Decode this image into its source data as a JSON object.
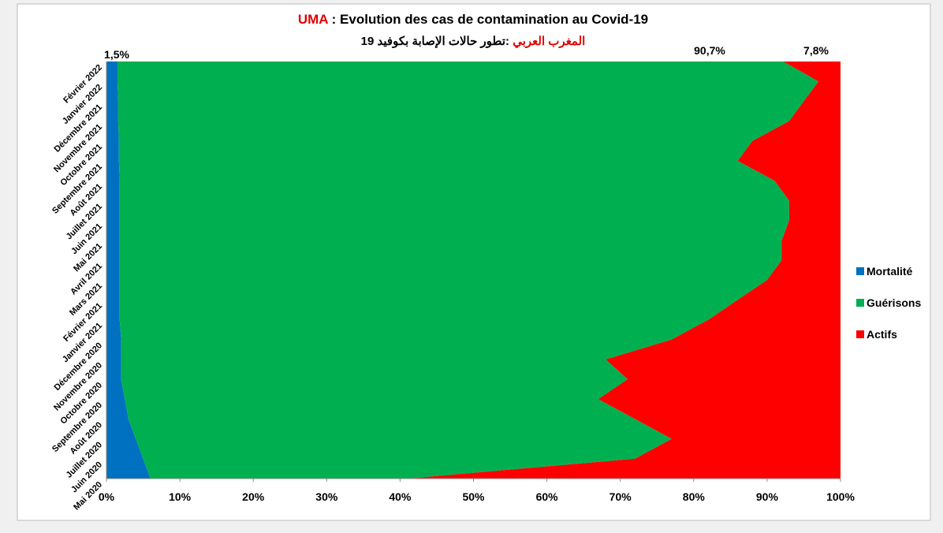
{
  "chart_data": {
    "type": "area",
    "orientation": "horizontal",
    "stacked": "percent",
    "title_prefix": "UMA",
    "title": " : Evolution des cas de contamination  au Covid-19",
    "subtitle_prefix": "المغرب العربي",
    "subtitle": " :تطور حالات الإصابة بكوفيد 19",
    "annotations": [
      "1,5%",
      "90,7%",
      "7,8%"
    ],
    "categories": [
      "Mai 2020",
      "Juin 2020",
      "Juillet 2020",
      "Août 2020",
      "Septembre 2020",
      "Octobre 2020",
      "Novembre 2020",
      "Décembre 2020",
      "Janvier 2021",
      "Février 2021",
      "Mars 2021",
      "Avril 2021",
      "Mai 2021",
      "Juin 2021",
      "Juillet 2021",
      "Août 2021",
      "Septembre 2021",
      "Octobre 2021",
      "Novembre 2021",
      "Décembre 2021",
      "Janvier 2022",
      "Février 2022"
    ],
    "series": [
      {
        "name": "Mortalité",
        "color": "#0070c0",
        "values": [
          6,
          5,
          4,
          3,
          2.5,
          2,
          2,
          2,
          1.8,
          1.8,
          1.8,
          1.8,
          1.8,
          1.8,
          1.8,
          1.8,
          1.7,
          1.7,
          1.6,
          1.6,
          1.5,
          1.5
        ]
      },
      {
        "name": "Guérisons",
        "color": "#00b050",
        "values": [
          35,
          67,
          73,
          69,
          64.5,
          69,
          66,
          75,
          80.2,
          84.2,
          88.2,
          90.2,
          90.2,
          91.2,
          91.2,
          89.2,
          84.3,
          86.3,
          91.4,
          93.4,
          95.5,
          90.7
        ]
      },
      {
        "name": "Actifs",
        "color": "#ff0000",
        "values": [
          59,
          28,
          23,
          28,
          33,
          29,
          32,
          23,
          18,
          14,
          10,
          8,
          8,
          7,
          7,
          9,
          14,
          12,
          7,
          5,
          3,
          7.8
        ]
      }
    ],
    "xlim": [
      0,
      100
    ],
    "xticks": [
      {
        "value": 0,
        "label": "0%"
      },
      {
        "value": 10,
        "label": "10%"
      },
      {
        "value": 20,
        "label": "20%"
      },
      {
        "value": 30,
        "label": "30%"
      },
      {
        "value": 40,
        "label": "40%"
      },
      {
        "value": 50,
        "label": "50%"
      },
      {
        "value": 60,
        "label": "60%"
      },
      {
        "value": 70,
        "label": "70%"
      },
      {
        "value": 80,
        "label": "80%"
      },
      {
        "value": 90,
        "label": "90%"
      },
      {
        "value": 100,
        "label": "100%"
      }
    ],
    "legend": "right"
  }
}
